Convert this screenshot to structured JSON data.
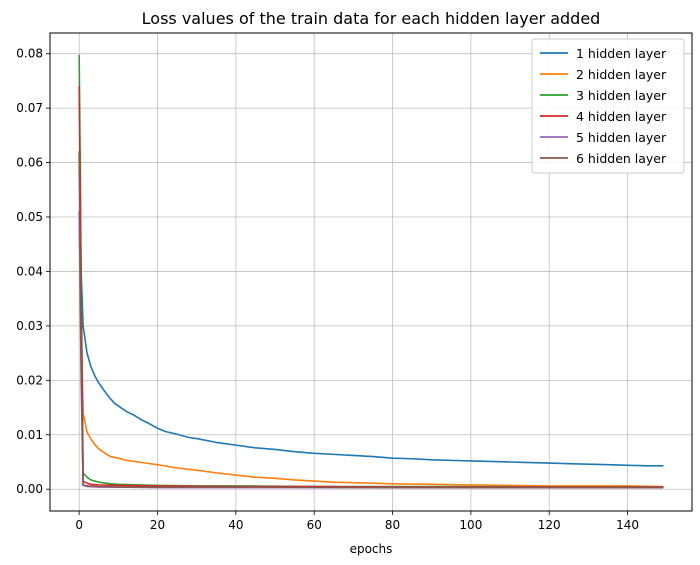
{
  "chart_data": {
    "type": "line",
    "title": "Loss values of the train data for each hidden layer added",
    "xlabel": "epochs",
    "ylabel": "",
    "xlim": [
      -7.45,
      156.45
    ],
    "ylim": [
      -0.004,
      0.0838
    ],
    "xticks": [
      0,
      20,
      40,
      60,
      80,
      100,
      120,
      140
    ],
    "yticks": [
      0.0,
      0.01,
      0.02,
      0.03,
      0.04,
      0.05,
      0.06,
      0.07,
      0.08
    ],
    "ytick_labels": [
      "0.00",
      "0.01",
      "0.02",
      "0.03",
      "0.04",
      "0.05",
      "0.06",
      "0.07",
      "0.08"
    ],
    "grid": true,
    "legend_position": "top-right",
    "series": [
      {
        "name": "1 hidden layer",
        "color": "#1f77b4",
        "points": [
          [
            0,
            0.061
          ],
          [
            0.5,
            0.04
          ],
          [
            1,
            0.03
          ],
          [
            2,
            0.025
          ],
          [
            3,
            0.0225
          ],
          [
            4,
            0.0208
          ],
          [
            5,
            0.0195
          ],
          [
            6,
            0.0185
          ],
          [
            7,
            0.0175
          ],
          [
            8,
            0.0166
          ],
          [
            9,
            0.0158
          ],
          [
            10,
            0.0153
          ],
          [
            12,
            0.0143
          ],
          [
            14,
            0.0136
          ],
          [
            16,
            0.0127
          ],
          [
            18,
            0.012
          ],
          [
            20,
            0.0112
          ],
          [
            22,
            0.0106
          ],
          [
            25,
            0.0101
          ],
          [
            28,
            0.0095
          ],
          [
            30,
            0.0093
          ],
          [
            35,
            0.0086
          ],
          [
            40,
            0.0081
          ],
          [
            45,
            0.0076
          ],
          [
            50,
            0.0073
          ],
          [
            55,
            0.0069
          ],
          [
            60,
            0.0066
          ],
          [
            65,
            0.0064
          ],
          [
            70,
            0.0062
          ],
          [
            75,
            0.006
          ],
          [
            80,
            0.0057
          ],
          [
            85,
            0.0056
          ],
          [
            90,
            0.0054
          ],
          [
            95,
            0.0053
          ],
          [
            100,
            0.0052
          ],
          [
            105,
            0.0051
          ],
          [
            110,
            0.005
          ],
          [
            115,
            0.0049
          ],
          [
            120,
            0.0048
          ],
          [
            125,
            0.0047
          ],
          [
            130,
            0.0046
          ],
          [
            135,
            0.0045
          ],
          [
            140,
            0.0044
          ],
          [
            145,
            0.0043
          ],
          [
            149,
            0.0043
          ]
        ]
      },
      {
        "name": "2 hidden layer",
        "color": "#ff7f0e",
        "points": [
          [
            0,
            0.051
          ],
          [
            0.5,
            0.03
          ],
          [
            1,
            0.014
          ],
          [
            2,
            0.0105
          ],
          [
            3,
            0.0092
          ],
          [
            4,
            0.0082
          ],
          [
            5,
            0.0074
          ],
          [
            6,
            0.0069
          ],
          [
            7,
            0.0064
          ],
          [
            8,
            0.006
          ],
          [
            10,
            0.0057
          ],
          [
            12,
            0.0053
          ],
          [
            15,
            0.005
          ],
          [
            20,
            0.0045
          ],
          [
            25,
            0.0039
          ],
          [
            30,
            0.0035
          ],
          [
            35,
            0.003
          ],
          [
            40,
            0.0026
          ],
          [
            45,
            0.0022
          ],
          [
            50,
            0.002
          ],
          [
            55,
            0.0017
          ],
          [
            60,
            0.0015
          ],
          [
            65,
            0.0013
          ],
          [
            70,
            0.0012
          ],
          [
            75,
            0.0011
          ],
          [
            80,
            0.001
          ],
          [
            90,
            0.0009
          ],
          [
            100,
            0.0008
          ],
          [
            110,
            0.0007
          ],
          [
            120,
            0.0006
          ],
          [
            130,
            0.0006
          ],
          [
            140,
            0.0006
          ],
          [
            149,
            0.0005
          ]
        ]
      },
      {
        "name": "3 hidden layer",
        "color": "#2ca02c",
        "points": [
          [
            0,
            0.0797
          ],
          [
            0.5,
            0.04
          ],
          [
            1,
            0.003
          ],
          [
            2,
            0.0022
          ],
          [
            3,
            0.0017
          ],
          [
            5,
            0.0013
          ],
          [
            8,
            0.001
          ],
          [
            10,
            0.0009
          ],
          [
            15,
            0.0008
          ],
          [
            20,
            0.0007
          ],
          [
            30,
            0.0006
          ],
          [
            40,
            0.0006
          ],
          [
            60,
            0.0005
          ],
          [
            80,
            0.0005
          ],
          [
            100,
            0.0005
          ],
          [
            120,
            0.0004
          ],
          [
            149,
            0.0004
          ]
        ]
      },
      {
        "name": "4 hidden layer",
        "color": "#d62728",
        "points": [
          [
            0,
            0.074
          ],
          [
            0.5,
            0.035
          ],
          [
            1,
            0.0015
          ],
          [
            2,
            0.0011
          ],
          [
            3,
            0.0009
          ],
          [
            5,
            0.0008
          ],
          [
            10,
            0.0007
          ],
          [
            20,
            0.0006
          ],
          [
            40,
            0.0005
          ],
          [
            60,
            0.0005
          ],
          [
            80,
            0.0004
          ],
          [
            100,
            0.0004
          ],
          [
            120,
            0.0004
          ],
          [
            149,
            0.0004
          ]
        ]
      },
      {
        "name": "5 hidden layer",
        "color": "#9467bd",
        "points": [
          [
            0,
            0.051
          ],
          [
            0.5,
            0.02
          ],
          [
            1,
            0.0007
          ],
          [
            2,
            0.0005
          ],
          [
            5,
            0.0004
          ],
          [
            10,
            0.0004
          ],
          [
            20,
            0.0003
          ],
          [
            40,
            0.0003
          ],
          [
            80,
            0.0003
          ],
          [
            120,
            0.0003
          ],
          [
            149,
            0.0003
          ]
        ]
      },
      {
        "name": "6 hidden layer",
        "color": "#8c564b",
        "points": [
          [
            0,
            0.062
          ],
          [
            0.5,
            0.025
          ],
          [
            1,
            0.0008
          ],
          [
            2,
            0.0006
          ],
          [
            5,
            0.0005
          ],
          [
            10,
            0.0004
          ],
          [
            20,
            0.0004
          ],
          [
            40,
            0.0004
          ],
          [
            80,
            0.0003
          ],
          [
            120,
            0.0003
          ],
          [
            149,
            0.0003
          ]
        ]
      }
    ]
  }
}
